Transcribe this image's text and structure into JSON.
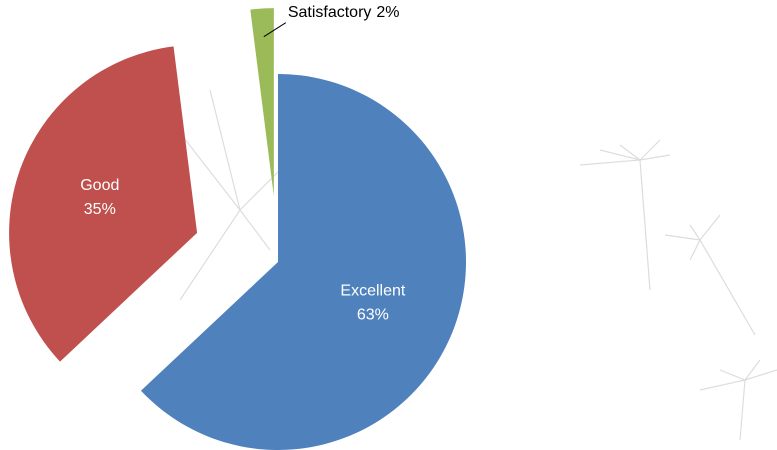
{
  "chart_data": {
    "type": "pie",
    "categories": [
      "Excellent",
      "Good",
      "Satisfactory"
    ],
    "values": [
      63,
      35,
      2
    ],
    "value_labels": [
      "63%",
      "35%",
      "2%"
    ],
    "colors": [
      "#4f81bd",
      "#c0504d",
      "#9bbb59"
    ]
  }
}
